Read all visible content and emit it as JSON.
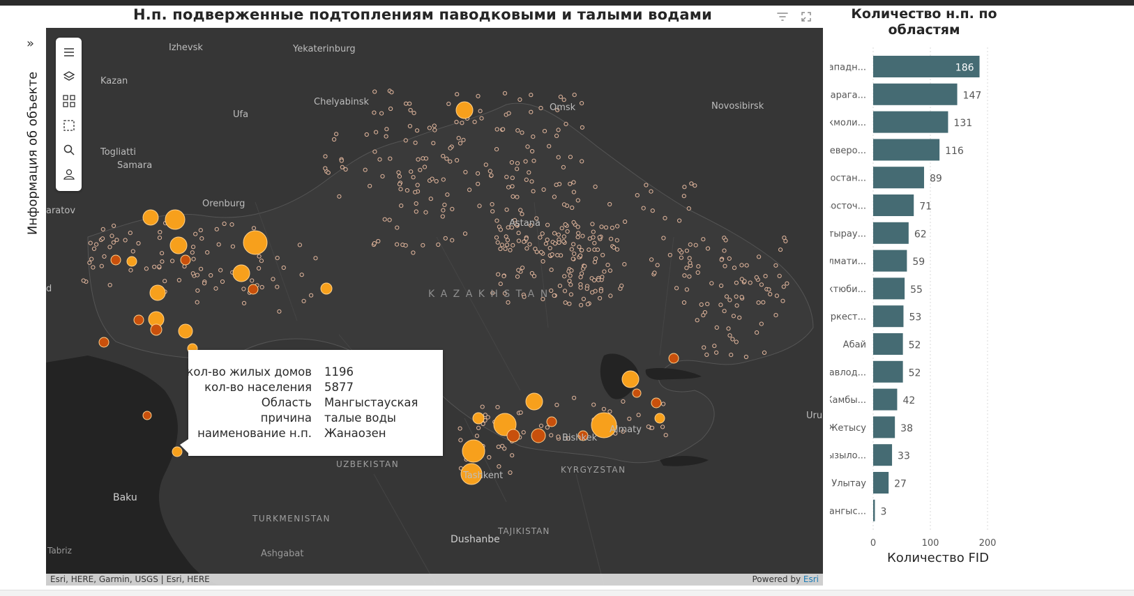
{
  "header": {
    "title": "Н.п. подверженные подтоплениям паводковыми и талыми водами",
    "filter_icon": "filter-icon",
    "expand_icon": "expand-icon"
  },
  "side_panel": {
    "label": "Информация об объекте",
    "chevron": "»"
  },
  "toolbar": {
    "items": [
      "menu-icon",
      "layers-icon",
      "qr-code-icon",
      "select-region-icon",
      "search-icon",
      "user-icon"
    ]
  },
  "map": {
    "labels": {
      "izhevsk": "Izhevsk",
      "yekaterinburg": "Yekaterinburg",
      "kazan": "Kazan",
      "chelyabinsk": "Chelyabinsk",
      "ufa": "Ufa",
      "omsk": "Omsk",
      "novosibirsk": "Novosibirsk",
      "togliatti": "Togliatti",
      "samara": "Samara",
      "orenburg": "Orenburg",
      "saratov": "aratov",
      "astana": "Astana",
      "kazakhstan": "K A Z A K H S T A N",
      "uzbekistan": "UZBEKISTAN",
      "kyrgyzstan": "KYRGYZSTAN",
      "turkmenistan": "TURKMENISTAN",
      "tajikistan": "TAJIKISTAN",
      "tashkent": "Tashkent",
      "bishkek": "Bishkek",
      "almaty": "Almaty",
      "baku": "Baku",
      "dushanbe": "Dushanbe",
      "ashgabat": "Ashgabat",
      "tabriz": "Tabriz",
      "urumqi": "Uru",
      "edge_d": "d"
    },
    "colors": {
      "background": "#363636",
      "land_border": "#505050",
      "water": "#1e1e1e",
      "marker_orange": "#f7a01c",
      "marker_dark_orange": "#c8500c",
      "marker_small_stroke": "#e3b79d"
    }
  },
  "popup": {
    "fields": [
      {
        "key": "кол-во жилых домов",
        "value": "1196"
      },
      {
        "key": "кол-во населения",
        "value": "5877"
      },
      {
        "key": "Область",
        "value": "Мангыстауская"
      },
      {
        "key": "причина",
        "value": "талые воды"
      },
      {
        "key": "наименование н.п.",
        "value": "Жанаозен"
      }
    ]
  },
  "attribution": {
    "left": "Esri, HERE, Garmin, USGS | Esri, HERE",
    "powered_by": "Powered by",
    "esri": "Esri"
  },
  "chart_title": "Количество н.п. по областям",
  "chart_data": {
    "type": "bar",
    "orientation": "horizontal",
    "title": "Количество н.п. по областям",
    "xlabel": "Количество FID",
    "ylabel": "",
    "categories": [
      "Западн...",
      "Карага...",
      "Акмоли...",
      "Северо...",
      "Костан...",
      "Восточ...",
      "Атырау...",
      "Алмати...",
      "Актюби...",
      "Туркест...",
      "Абай",
      "Павлод...",
      "Жамбы...",
      "Жетысу",
      "Кызыло...",
      "Улытау",
      "Мангыс..."
    ],
    "values": [
      186,
      147,
      131,
      116,
      89,
      71,
      62,
      59,
      55,
      53,
      52,
      52,
      42,
      38,
      33,
      27,
      3
    ],
    "xlim": [
      0,
      200
    ],
    "xticks": [
      "0",
      "100",
      "200"
    ],
    "bar_color": "#456b73",
    "grid": true
  }
}
